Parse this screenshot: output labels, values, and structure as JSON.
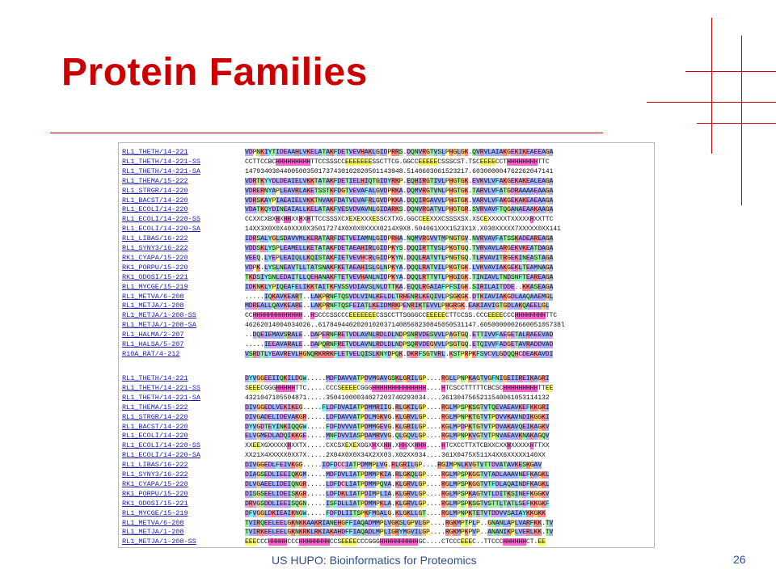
{
  "slide": {
    "title": "Protein Families",
    "footer": "US HUPO: Bioinformatics for Proteomics",
    "page_number": "26"
  },
  "colors": {
    "title": "#cc0000",
    "decor_lines": "#cc0000",
    "footer_text": "#2d4d8a",
    "link_text": "#1a1ab0",
    "hydrophobic": "#9fb4ff",
    "positive": "#ff8a8a",
    "negative": "#d79cff",
    "polar": "#9cf09c",
    "glycine": "#ffc87a",
    "proline": "#ffff80",
    "aromatic": "#7ff0f0",
    "cysteine": "#ffb0e0",
    "helix_H": "#ff60d0",
    "strand_E": "#ffff60"
  },
  "alignment": {
    "block1": [
      {
        "name": "RL1_THETH/14-221",
        "seq": "VDPNKIYTIDEAAHLVKELATAKFDETVEVHAKLGIDPRRS.DQNVRGTVSLPHGLGK.QVRVLAIAKGEKIKEAEEAGA"
      },
      {
        "name": "RL1_THETH/14-221-SS",
        "seq": "CCTTCCBCHHHHHHHHHTTCCSSSCCEEEEEEESSCTTCG.GGCCEEEEECSSSCST.TSCEEEECCTHHHHHHHHTTC"
      },
      {
        "name": "RL1_THETH/14-221-SA",
        "seq": "14793403044005003501737430102020501143948.5140603061523217.603000004762262047141"
      },
      {
        "name": "RL1_THEMA/15-222",
        "seq": "VDRTKYYDLDEAIELVKKTATAKFDETIELHIQTGIDYRKP.EQHIRGTIVLPHGTGK.EVKVLVFAKGEKAKEALEAGA"
      },
      {
        "name": "RL1_STRGR/14-220",
        "seq": "VDRERNYAPLEAVRLAKETSSTKFDGTVEVAFALGVDPRKA.DQMVRGTVNLPHGTGK.TARVLVFATGDRAAAAEAAGA"
      },
      {
        "name": "RL1_BACST/14-220",
        "seq": "VDRSKAYPIAEAIELVKKTNVAKFDATVEVAFRLGVDPKKA.DQQIRGAVVLPHGTGK.VARVLVFAKGEKAKEAEAAGA"
      },
      {
        "name": "RL1_ECOLI/14-220",
        "seq": "VDATKQYDINEAIALLKELATAKFVESVDVAVNLGIDARKS.DQNVRGATVLPHGTGR.SVRVAVFTQGANAEAAKAAGA"
      },
      {
        "name": "RL1_ECOLI/14-220-SS",
        "seq": "CCXXCXBXHXHHXXHXHTTCCSSSXCXEXEXXXESSCXTXG.GGCCEEXXXCSSSXSX.XSCEXXXXXTXXXXXHXXTTC"
      },
      {
        "name": "RL1_ECOLI/14-220-SA",
        "seq": "14XX3X0X0X40XXX0X35017274X0X0X0XXXX0214X9X8.504061XXX1523X1X.X030XXXXX7XXXXX0XX141"
      },
      {
        "name": "RL1_LIBAS/16-222",
        "seq": "IDRSALYGLSDAVVMLKERATARFDETVEIAMNLGIDPRHA.NQMVRGVVTMPNGTGV.NVRVAVFATSSKADEAREAGA"
      },
      {
        "name": "RL1_SYNY3/16-222",
        "seq": "VDDSKLYSPLEAMELLKETATAKFDETAEAHIRLGIDPKYS.DQQIRTTVSLPKGTGQ.TVRVAVLARGEKVKEATDAGA"
      },
      {
        "name": "RK1_CYAPA/15-220",
        "seq": "VEEQ.LYEPLEAIQLLKQISTAKFIETVEVHCRLGIDPKYN.DQQLRATVTLPNGTGQ.TLRVAVITRGEKINEASTAGA"
      },
      {
        "name": "RK1_PORPU/15-220",
        "seq": "VDPK.LYSLNEAVTLLTATSNAKFKETAEAHISLGLNPKYA.DQQLRATVILPKGTGK.LVKVAVIAKGEKLTEAMNAGA"
      },
      {
        "name": "RK1_ODOSI/15-221",
        "seq": "TKDSIYSNLEDAITLLQEHANAKFTETVEVHANLNIDPKYA.DQQLRTTVTLPHGIGK.TINIAVLTNDSNFTEAREAGA"
      },
      {
        "name": "RL1_MYCGE/15-219",
        "seq": "IDKNKLYPIQEAFELIKKTAITKFVSSVDIAVSLNLDTTKA.EQQLRGAIAFPFSIGK.SIRILAITDDE..KKASEAGA"
      },
      {
        "name": "RL1_METVA/6-208",
        "seq": ".....IQKAVKEART..LAKPRNFTQSVDLVINLKELDLTRHENRLKEQIVLPSGKGK.DTKIAVIAKGDLAAQAAEMGL"
      },
      {
        "name": "RL1_METJA/1-208",
        "seq": "MDREALLQAVKEARE..LAKPRNFTQSFEIATLKEIDMRKPENRIKTEVVLPHGRGK.EAKIAVIGTGDLAKQAEELGL"
      },
      {
        "name": "RL1_METJA/1-208-SS",
        "seq": "CCHHHHHHHHHHHHH..HSCCCSSCCCEEEEEEECSSCCTTSGGGCCEEEEECTTCCSS.CCCEEEECCCHHHHHHHHTTC"
      },
      {
        "name": "RL1_METJA/1-208-SA",
        "seq": "46262014004034026..61784944020201020371408568230845050531147.605000000266005105738l"
      },
      {
        "name": "RL1_HALMA/2-207",
        "seq": "..DQEIEMAVSRALE..DAPERNFRETVDLAVNLRDLDLNDPSNRVDESVVLPAGTGQ.ETTIVVFAEGETALRAEEVAD"
      },
      {
        "name": "RL1_HALSA/5-207",
        "seq": ".....IEEAVARALE..DAPQRNFRETVDLAVNLRDLDLNDPSQRVDEGVVLPSGTGQ.ETQIVVFADGETAVRADDVAD"
      },
      {
        "name": "R10A_RAT/4-212",
        "seq": "VSRDTLYEAVREVLHGNQRKRRKFLETVELQISLKNYDPQK.DKRFSGTVRL.KSTPRPKFSVCVLGDQQHCDEAKAVDI"
      }
    ],
    "block2": [
      {
        "name": "RL1_THETH/14-221",
        "seq": "DYVGGEEIIQKILDGW.....MDFDAVVATPDVMGAVGSKLGRILGP....RGLLPNPKAGTVGFNIGEIIREIKAGRI"
      },
      {
        "name": "RL1_THETH/14-221-SS",
        "seq": "SEEECGGGHHHHHTTC.....CCCSEEEECGGGHHHHHHHHHHHHHH....HTCSCCTTTTTCBCSCHHHHHHHHHTTEE"
      },
      {
        "name": "RL1_THETH/14-221-SA",
        "seq": "4321047105504871.....35041000034027203740293034....3613047565211540061053114132"
      },
      {
        "name": "RL1_THEMA/15-222",
        "seq": "DIVGGEDLVEKIKEG.....FLDFDVAIATPDMMRIIG.RLGKILGP....RGLMPSPKSGTVTQEVAEAVKEFKKGRI"
      },
      {
        "name": "RL1_STRGR/14-220",
        "seq": "DIVGADELIDEVAKGR.....LDFDAVVATPDLMGKVG.KLGRVLGP....RGLMPNPKTGTVTPDVVKAVNDIKGGKI"
      },
      {
        "name": "RL1_BACST/14-220",
        "seq": "DYVGDTEYINKIQQGW.....FDFDVVVATPDMMGEVG.KLGRILGP....KGLMPDPKTGTVTPDVAKAVQEIKAGKV"
      },
      {
        "name": "RL1_ECOLI/14-220",
        "seq": "ELVGMEDLADQIKKGE.....MNFDVVIASPDAMRVVG.QLGQVLGP....RGLMPNPKVGTVTPNVAEAVKNAKAGQV"
      },
      {
        "name": "RL1_ECOLI/14-220-SS",
        "seq": "XXEEXGXXXXXHXXTX.....CXCSXEXEXGGXHXXHH.XHHXXHHH....HTCXCCTTXTCBXXCXXHXXXXXHTTXX"
      },
      {
        "name": "RL1_ECOLI/14-220-SA",
        "seq": "XX21X4XXXXX0XX7X.....2X04X0X0X34X2XX03.X02XX034....361X0475X511X4XX6XXXXX140XX"
      },
      {
        "name": "RL1_LIBAS/16-222",
        "seq": "DIVGGEDLFEIVKGG.....IDFDCCIATPDMMPLVG.RLGRILGP....RGIMPNLKVGTVTTDVATAVKESKGAV"
      },
      {
        "name": "RL1_SYNY3/16-222",
        "seq": "DIAGSEDLIEEIQKGM.....MDFDVLIATPDMMPKIA.RLGKQLGP....RGLMPSPKGGTVTADLAAAVNEFKAGKL"
      },
      {
        "name": "RK1_CYAPA/15-220",
        "seq": "DLVGAEELIDEIQNGR.....LDFDCLIATPDMMPQVA.KLGRVLGP....RGLMPSPKGGTVTFDLAQAINDFKAGKL"
      },
      {
        "name": "RK1_PORPU/15-220",
        "seq": "DISGSEELIDEISKGR.....LDFDKLIATPDIMPLIA.KLGRVLGP....RGLMPSPKAGTVTLDITKSINEFKGGKV"
      },
      {
        "name": "RK1_ODOSI/15-221",
        "seq": "DRVGSDDLIEEISQGN.....ISFDLLIATPDMMPKLA.KLGRVLGP....RGLMPSPKSGTVSTTLTATLSEFKKGKF"
      },
      {
        "name": "RL1_MYCGE/15-219",
        "seq": "DFVGGLDKIEAIKNGW.....FDFDLIITSPKFMGALG.KLGKLLGT....RGLMPNPKTETVTDDVVSAIAYKKGKK"
      },
      {
        "name": "RL1_METVA/6-208",
        "seq": "TVIRQEELEELGKNKKAAKRIANEHGFFIAQADMMPLVGKSLGPVLGP....RGKMPTPLP..GNANLAPLVARFKK.TV"
      },
      {
        "name": "RL1_METJA/1-208",
        "seq": "TVIRKEELEELGKNKRKLRKIAKAHDFFIAQADLMPLIGRYMGVILGP....RGKMPKPVP..ANANIKPLVERLKK.TV"
      },
      {
        "name": "RL1_METJA/1-208-SS",
        "seq": "EEECCCHHHHHCCCHHHHHHHHCCSEEEECCCGGGHHHHHHHHHHGC....CTCCCEEEC..TTCCCHHHHHHCT.EE"
      }
    ]
  }
}
